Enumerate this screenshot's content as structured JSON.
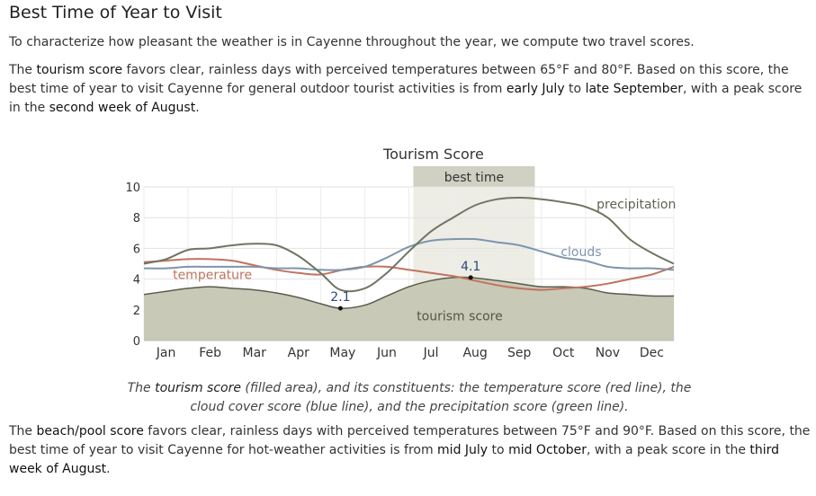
{
  "section": {
    "heading": "Best Time of Year to Visit",
    "intro": "To characterize how pleasant the weather is in Cayenne throughout the year, we compute two travel scores.",
    "tourism": {
      "before_score": "The ",
      "score_name": "tourism score",
      "after_score": " favors clear, rainless days with perceived temperatures between 65°F and 80°F. Based on this score, the best time of year to visit Cayenne for general outdoor tourist activities is from ",
      "start": "early July",
      "to": " to ",
      "end": "late September",
      "after_end": ", with a peak score in the ",
      "peak": "second week of August",
      "final": "."
    },
    "beach": {
      "before_score": "The ",
      "score_name": "beach/pool score",
      "after_score": " favors clear, rainless days with perceived temperatures between 75°F and 90°F. Based on this score, the best time of year to visit Cayenne for hot-weather activities is from ",
      "start": "mid July",
      "to": " to ",
      "end": "mid October",
      "after_end": ", with a peak score in the ",
      "peak": "third week of August",
      "final": "."
    }
  },
  "caption": {
    "part1": "The ",
    "bold": "tourism score",
    "part2": " (filled area), and its constituents: the temperature score (red line), the cloud cover score (blue line), and the precipitation score (green line)."
  },
  "chart_data": {
    "type": "area",
    "title": "Tourism Score",
    "xlabel": "",
    "ylabel": "",
    "ylim": [
      0,
      10
    ],
    "xlim": [
      0,
      12
    ],
    "yticks": [
      0,
      2,
      4,
      6,
      8,
      10
    ],
    "grid": true,
    "legend": "none (series labeled inline)",
    "months": [
      "Jan",
      "Feb",
      "Mar",
      "Apr",
      "May",
      "Jun",
      "Jul",
      "Aug",
      "Sep",
      "Oct",
      "Nov",
      "Dec"
    ],
    "best_time": {
      "label": "best time",
      "start": 6.1,
      "end": 8.85
    },
    "annotations": [
      {
        "label": "2.1",
        "x": 4.45,
        "y": 2.1
      },
      {
        "label": "4.1",
        "x": 7.4,
        "y": 4.1
      }
    ],
    "colors": {
      "tourism_fill": "#c9c9b7",
      "tourism_line": "#5b5b4c",
      "temperature": "#c07460",
      "clouds": "#7d95ad",
      "precipitation": "#707562",
      "best_time_band": "#ececE4",
      "best_time_label_bg": "#d0d0c3"
    },
    "series": [
      {
        "name": "tourism score",
        "style": "filled area",
        "x": [
          0,
          0.5,
          1,
          1.5,
          2,
          2.5,
          3,
          3.5,
          4,
          4.45,
          5,
          5.5,
          6,
          6.5,
          7,
          7.4,
          8,
          8.5,
          9,
          9.5,
          10,
          10.5,
          11,
          11.5,
          12
        ],
        "y": [
          3.0,
          3.2,
          3.4,
          3.5,
          3.4,
          3.3,
          3.1,
          2.8,
          2.4,
          2.1,
          2.3,
          2.9,
          3.5,
          3.9,
          4.1,
          4.1,
          3.9,
          3.7,
          3.5,
          3.5,
          3.4,
          3.1,
          3.0,
          2.9,
          2.9
        ]
      },
      {
        "name": "temperature",
        "style": "line",
        "x": [
          0,
          0.5,
          1,
          1.5,
          2,
          2.5,
          3,
          3.5,
          4,
          4.5,
          5,
          5.5,
          6,
          6.5,
          7,
          7.5,
          8,
          8.5,
          9,
          9.5,
          10,
          10.5,
          11,
          11.5,
          12
        ],
        "y": [
          5.1,
          5.2,
          5.3,
          5.3,
          5.2,
          4.9,
          4.6,
          4.4,
          4.3,
          4.6,
          4.8,
          4.8,
          4.6,
          4.4,
          4.2,
          3.9,
          3.6,
          3.4,
          3.3,
          3.4,
          3.5,
          3.7,
          4.0,
          4.3,
          4.8
        ]
      },
      {
        "name": "clouds",
        "style": "line",
        "x": [
          0,
          0.5,
          1,
          1.5,
          2,
          2.5,
          3,
          3.5,
          4,
          4.5,
          5,
          5.5,
          6,
          6.5,
          7,
          7.5,
          8,
          8.5,
          9,
          9.5,
          10,
          10.5,
          11,
          11.5,
          12
        ],
        "y": [
          4.7,
          4.7,
          4.8,
          4.8,
          4.8,
          4.8,
          4.7,
          4.7,
          4.6,
          4.6,
          4.8,
          5.4,
          6.1,
          6.5,
          6.6,
          6.6,
          6.4,
          6.2,
          5.8,
          5.4,
          5.2,
          4.8,
          4.7,
          4.7,
          4.6
        ]
      },
      {
        "name": "precipitation",
        "style": "line",
        "x": [
          0,
          0.5,
          1,
          1.5,
          2,
          2.5,
          3,
          3.5,
          4,
          4.45,
          5,
          5.5,
          6,
          6.5,
          7,
          7.5,
          8,
          8.5,
          9,
          9.5,
          10,
          10.5,
          11,
          11.5,
          12
        ],
        "y": [
          5.0,
          5.3,
          5.9,
          6.0,
          6.2,
          6.3,
          6.2,
          5.5,
          4.4,
          3.3,
          3.4,
          4.4,
          5.8,
          7.1,
          8.0,
          8.8,
          9.2,
          9.3,
          9.2,
          9.0,
          8.7,
          8.0,
          6.6,
          5.7,
          5.0
        ]
      }
    ],
    "series_labels": [
      {
        "series": "temperature",
        "text": "temperature",
        "x": 1.55,
        "y": 4.3
      },
      {
        "series": "clouds",
        "text": "clouds",
        "x": 9.9,
        "y": 5.8
      },
      {
        "series": "precipitation",
        "text": "precipitation",
        "x": 11.15,
        "y": 8.9
      },
      {
        "series": "tourism score",
        "text": "tourism score",
        "x": 7.15,
        "y": 1.6
      }
    ]
  }
}
